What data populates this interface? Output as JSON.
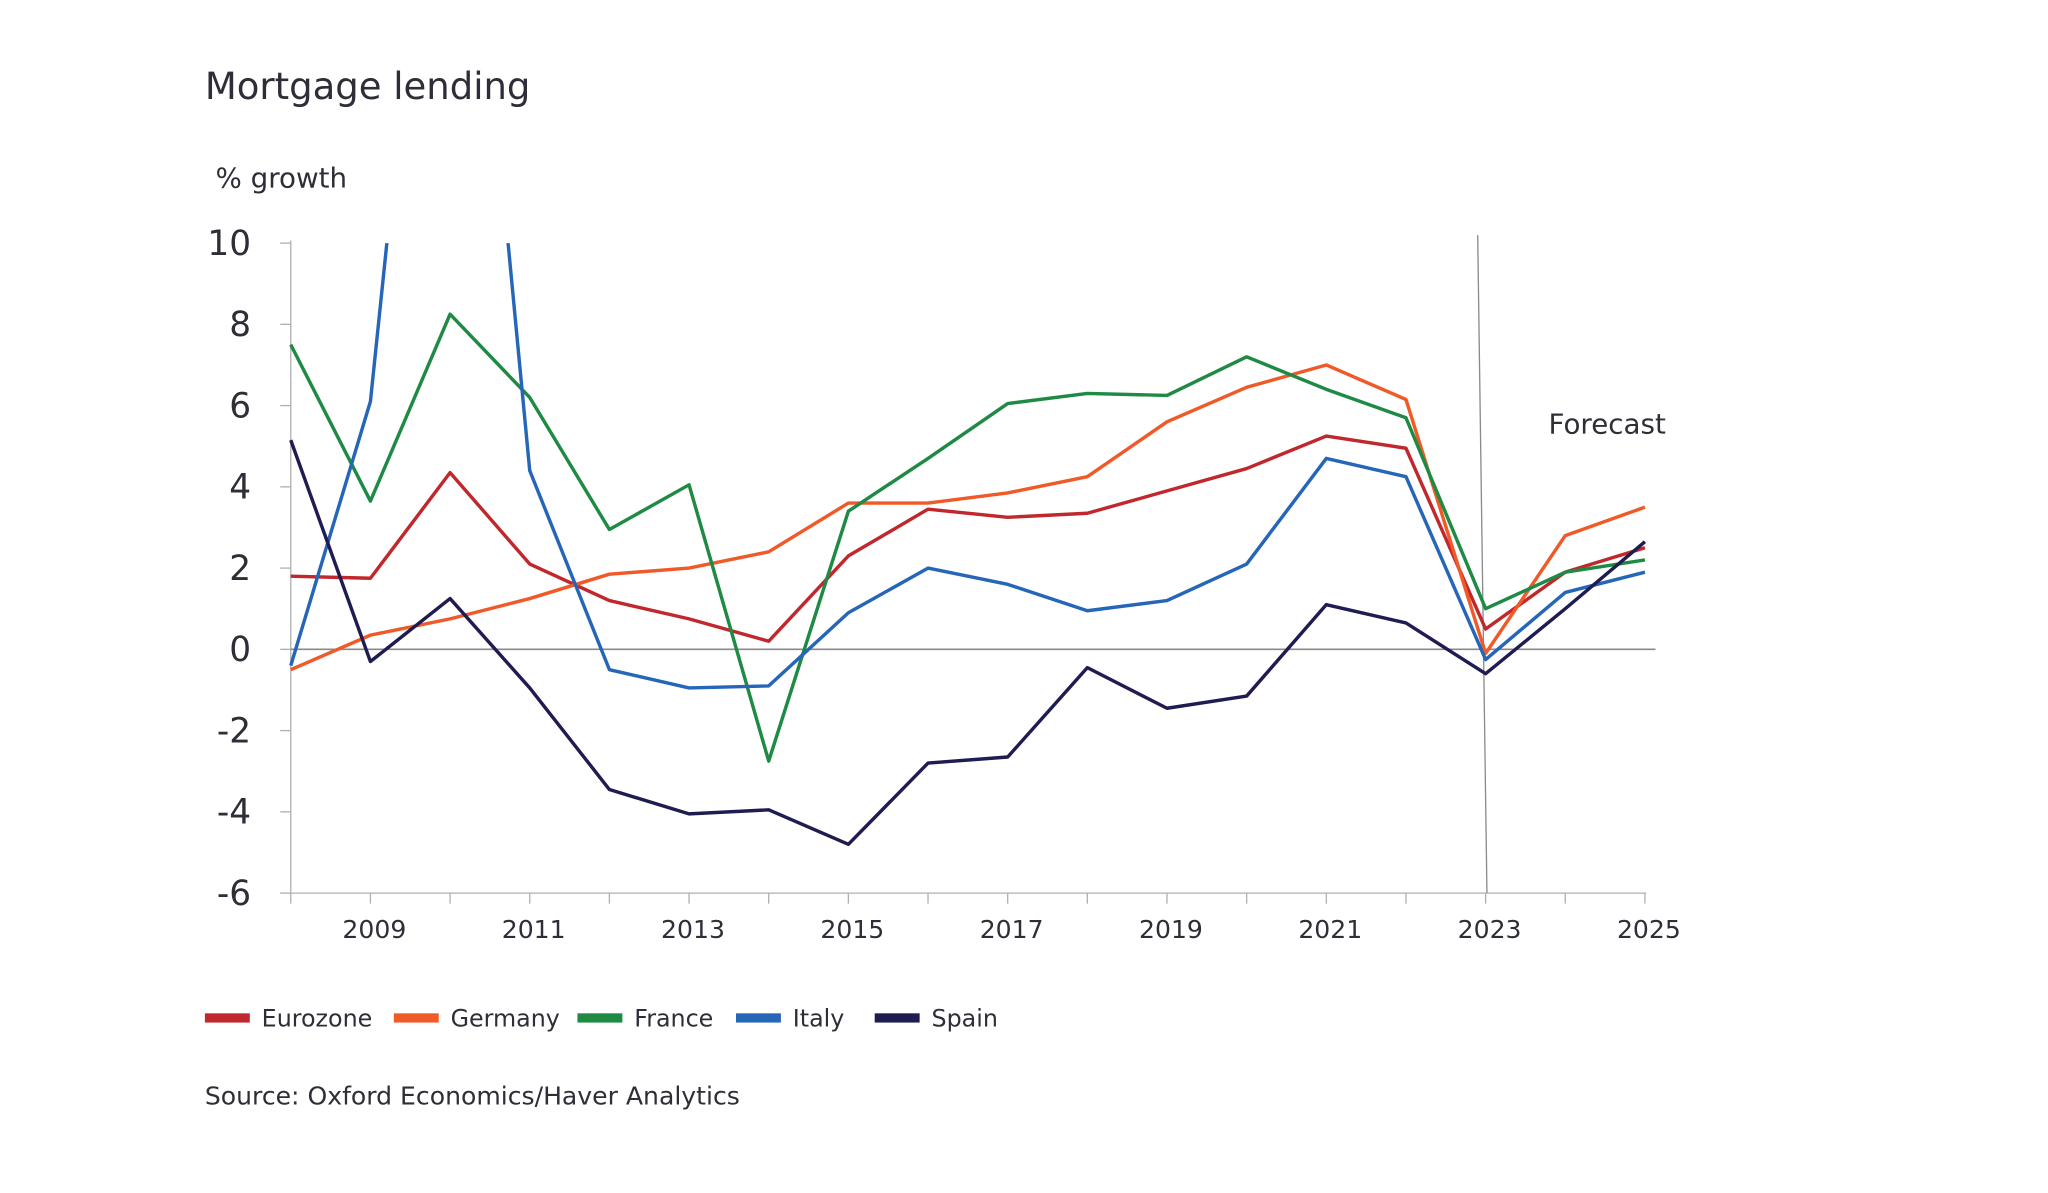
{
  "chart_data": {
    "type": "line",
    "title": "Mortgage lending",
    "ylabel": "% growth",
    "xlabel": "",
    "ylim": [
      -6,
      10
    ],
    "yticks": [
      10,
      8,
      6,
      4,
      2,
      0,
      -2,
      -4,
      -6
    ],
    "xlim": [
      2008,
      2025
    ],
    "xtick_labels": [
      "2009",
      "2011",
      "2013",
      "2015",
      "2017",
      "2019",
      "2021",
      "2023",
      "2025"
    ],
    "x": [
      2008,
      2009,
      2010,
      2011,
      2012,
      2013,
      2014,
      2015,
      2016,
      2017,
      2018,
      2019,
      2020,
      2021,
      2022,
      2023,
      2024,
      2025
    ],
    "annotation": {
      "text": "Forecast",
      "x": 2023
    },
    "legend_position": "bottom-left",
    "grid": false,
    "series": [
      {
        "name": "Eurozone",
        "color": "#c0282d",
        "values": [
          1.8,
          1.75,
          4.35,
          2.1,
          1.2,
          0.75,
          0.2,
          2.3,
          3.45,
          3.25,
          3.35,
          3.9,
          4.45,
          5.25,
          4.95,
          0.5,
          1.9,
          2.5
        ]
      },
      {
        "name": "Germany",
        "color": "#f05a28",
        "values": [
          -0.5,
          0.35,
          0.75,
          1.25,
          1.85,
          2.0,
          2.4,
          3.6,
          3.6,
          3.85,
          4.25,
          5.6,
          6.45,
          7.0,
          6.15,
          -0.1,
          2.8,
          3.5
        ]
      },
      {
        "name": "France",
        "color": "#1e8a44",
        "values": [
          7.5,
          3.65,
          8.25,
          6.2,
          2.95,
          4.05,
          -2.75,
          3.4,
          4.7,
          6.05,
          6.3,
          6.25,
          7.2,
          6.4,
          5.7,
          1.0,
          1.9,
          2.2
        ]
      },
      {
        "name": "Italy",
        "color": "#2566b8",
        "values": [
          -0.4,
          6.1,
          25,
          4.4,
          -0.5,
          -0.95,
          -0.9,
          0.9,
          2.0,
          1.6,
          0.95,
          1.2,
          2.1,
          4.7,
          4.25,
          -0.25,
          1.4,
          1.9
        ]
      },
      {
        "name": "Spain",
        "color": "#1f1c52",
        "values": [
          5.15,
          -0.3,
          1.25,
          -0.95,
          -3.45,
          -4.05,
          -3.95,
          -4.8,
          -2.8,
          -2.65,
          -0.45,
          -1.45,
          -1.15,
          1.1,
          0.65,
          -0.6,
          1.0,
          2.65
        ]
      }
    ],
    "source": "Source: Oxford Economics/Haver Analytics"
  }
}
